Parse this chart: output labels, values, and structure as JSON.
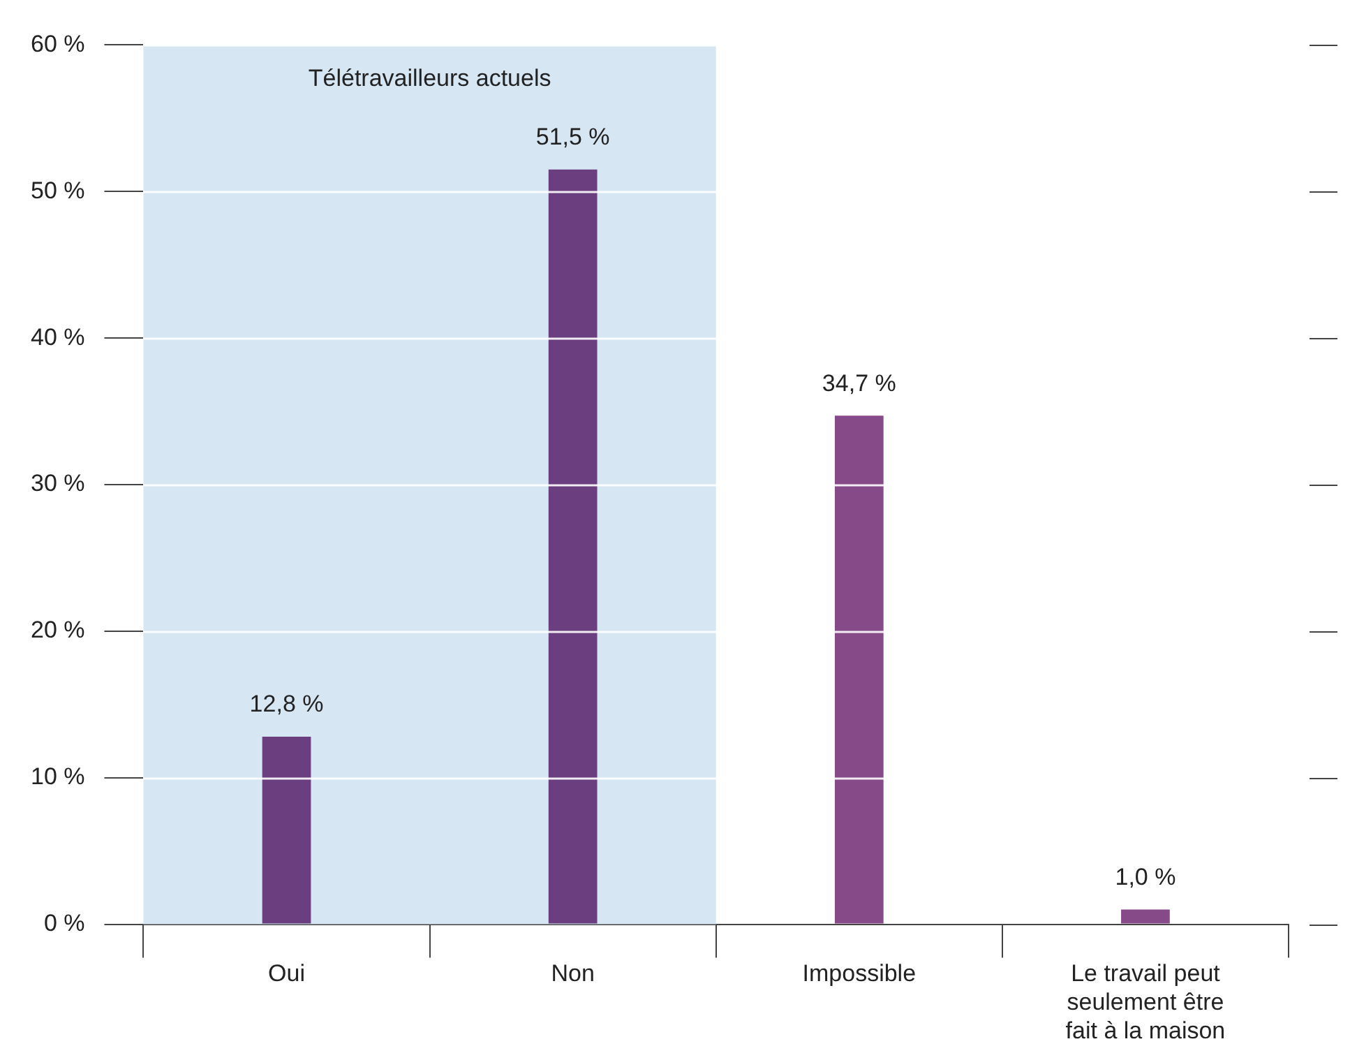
{
  "chart_data": {
    "type": "bar",
    "categories": [
      "Oui",
      "Non",
      "Impossible",
      "Le travail peut seulement être fait à la maison"
    ],
    "values": [
      12.8,
      51.5,
      34.7,
      1.0
    ],
    "colors": [
      "#6b3f7f",
      "#6b3f7f",
      "#874a89",
      "#874a89"
    ],
    "value_labels": [
      "12,8 %",
      "51,5 %",
      "34,7 %",
      "1,0 %"
    ],
    "ylim": [
      0,
      60
    ],
    "yticks": [
      {
        "value": 0,
        "label": "0 %"
      },
      {
        "value": 10,
        "label": "10 %"
      },
      {
        "value": 20,
        "label": "20 %"
      },
      {
        "value": 30,
        "label": "30 %"
      },
      {
        "value": 40,
        "label": "40 %"
      },
      {
        "value": 50,
        "label": "50 %"
      },
      {
        "value": 60,
        "label": "60 %"
      }
    ],
    "bands": [
      {
        "axis": "x",
        "from": "Oui",
        "to": "Non",
        "label": "Télétravailleurs actuels",
        "color": "#d6e6f3"
      }
    ],
    "grid": "y",
    "legend": false
  }
}
